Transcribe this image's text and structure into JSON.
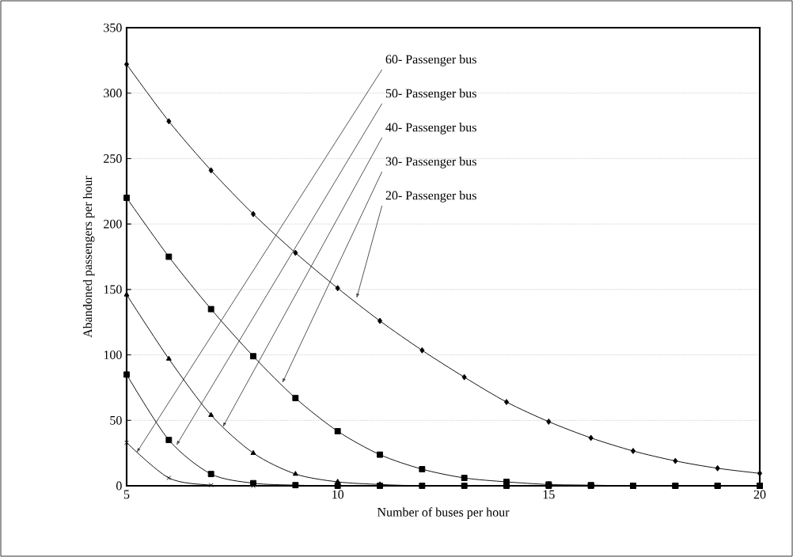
{
  "chart_data": {
    "type": "line",
    "xlabel": "Number of buses per hour",
    "ylabel": "Abandoned  passengers per hour",
    "x": [
      5,
      6,
      7,
      8,
      9,
      10,
      11,
      12,
      13,
      14,
      15,
      16,
      17,
      18,
      19,
      20
    ],
    "series": [
      {
        "color": "#000000",
        "marker": "diamond",
        "values": [
          322,
          278.5,
          241,
          207.6,
          178,
          151,
          126,
          103.5,
          83,
          64,
          49,
          36.6,
          26.6,
          19,
          13.4,
          9.5
        ]
      },
      {
        "color": "#000000",
        "marker": "square",
        "values": [
          220,
          175,
          135,
          99,
          67,
          41.7,
          23.8,
          12.7,
          6,
          3,
          1,
          0.5,
          0,
          0,
          0,
          0
        ]
      },
      {
        "color": "#000000",
        "marker": "triangle",
        "values": [
          146,
          97,
          54,
          25,
          9,
          3,
          1,
          0,
          0,
          0,
          0,
          0,
          0,
          0,
          0,
          0
        ]
      },
      {
        "color": "#000000",
        "marker": "square",
        "values": [
          85,
          35,
          9,
          2,
          0.5,
          0,
          0,
          0,
          0,
          0,
          0,
          0,
          0,
          0,
          0,
          0
        ]
      },
      {
        "color": "#000000",
        "marker": "cross",
        "values": [
          33,
          6,
          0.5,
          0,
          0,
          0,
          0,
          0,
          0,
          0,
          0,
          0,
          0,
          0,
          0,
          0
        ]
      }
    ],
    "xlim": [
      5,
      20
    ],
    "ylim": [
      0,
      350
    ],
    "xticks": [
      5,
      10,
      15,
      20
    ],
    "yticks": [
      0,
      50,
      100,
      150,
      200,
      250,
      300,
      350
    ],
    "grid": "y",
    "line_style": "solid",
    "annotations": [
      {
        "text": "60- Passenger bus",
        "x": 5.24,
        "y": 25.5
      },
      {
        "text": "50- Passenger bus",
        "x": 6.18,
        "y": 31
      },
      {
        "text": "40- Passenger bus",
        "x": 7.28,
        "y": 45
      },
      {
        "text": "30- Passenger bus",
        "x": 8.69,
        "y": 78.7
      },
      {
        "text": "20- Passenger bus",
        "x": 10.45,
        "y": 143.5
      }
    ]
  }
}
